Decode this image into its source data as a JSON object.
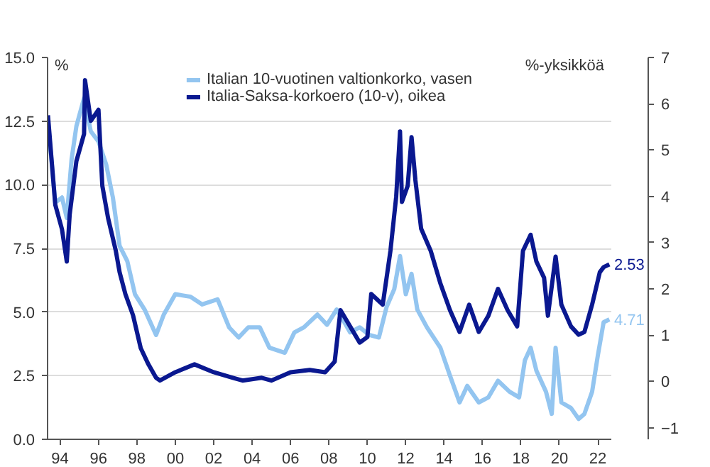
{
  "chart_data": {
    "type": "line",
    "ylabel": "%",
    "y2label": "%-yksikköä",
    "xlim": [
      1993.35,
      2022.7
    ],
    "xticks": [
      {
        "value": 1994,
        "label": "94"
      },
      {
        "value": 1996,
        "label": "96"
      },
      {
        "value": 1998,
        "label": "98"
      },
      {
        "value": 2000,
        "label": "00"
      },
      {
        "value": 2002,
        "label": "02"
      },
      {
        "value": 2004,
        "label": "04"
      },
      {
        "value": 2006,
        "label": "06"
      },
      {
        "value": 2008,
        "label": "08"
      },
      {
        "value": 2010,
        "label": "10"
      },
      {
        "value": 2012,
        "label": "12"
      },
      {
        "value": 2014,
        "label": "14"
      },
      {
        "value": 2016,
        "label": "16"
      },
      {
        "value": 2018,
        "label": "18"
      },
      {
        "value": 2020,
        "label": "20"
      },
      {
        "value": 2022,
        "label": "22"
      }
    ],
    "ylim": [
      0,
      15
    ],
    "yticks": [
      {
        "value": 0,
        "label": "0.0"
      },
      {
        "value": 2.5,
        "label": "2.5"
      },
      {
        "value": 5,
        "label": "5.0"
      },
      {
        "value": 7.5,
        "label": "7.5"
      },
      {
        "value": 10,
        "label": "10.0"
      },
      {
        "value": 12.5,
        "label": "12.5"
      },
      {
        "value": 15,
        "label": "15.0"
      }
    ],
    "y2lim": [
      -1.25,
      7
    ],
    "y2ticks": [
      -1,
      0,
      1,
      2,
      3,
      4,
      5,
      6,
      7
    ],
    "grid": "y",
    "legend": "top",
    "line_style": "solid",
    "marker": "none",
    "series": [
      {
        "name": "Italian 10-vuotinen valtionkorko, vasen",
        "color": "#93c5f0",
        "axis": "y",
        "x": [
          1993.37,
          1993.75,
          1994.1,
          1994.35,
          1994.6,
          1994.85,
          1995.25,
          1995.6,
          1996.0,
          1996.4,
          1996.75,
          1997.1,
          1997.5,
          1997.9,
          1998.4,
          1999.0,
          1999.4,
          2000.0,
          2000.8,
          2001.4,
          2002.2,
          2002.8,
          2003.3,
          2003.8,
          2004.4,
          2004.9,
          2005.7,
          2006.2,
          2006.7,
          2007.4,
          2007.9,
          2008.4,
          2008.8,
          2009.1,
          2009.6,
          2010.1,
          2010.6,
          2011.0,
          2011.4,
          2011.7,
          2012.0,
          2012.3,
          2012.6,
          2013.1,
          2013.8,
          2014.3,
          2014.8,
          2015.2,
          2015.8,
          2016.3,
          2016.8,
          2017.4,
          2017.9,
          2018.2,
          2018.5,
          2018.8,
          2019.3,
          2019.6,
          2019.8,
          2020.1,
          2020.6,
          2021.0,
          2021.3,
          2021.7,
          2022.0,
          2022.3,
          2022.6
        ],
        "values": [
          12.5,
          9.3,
          9.5,
          8.7,
          11.0,
          12.3,
          13.4,
          12.1,
          11.7,
          10.8,
          9.5,
          7.6,
          7.0,
          5.7,
          5.1,
          4.1,
          4.9,
          5.7,
          5.6,
          5.3,
          5.5,
          4.4,
          4.0,
          4.4,
          4.4,
          3.6,
          3.4,
          4.2,
          4.4,
          4.9,
          4.5,
          5.1,
          4.6,
          4.2,
          4.4,
          4.1,
          4.0,
          5.2,
          5.9,
          7.2,
          5.7,
          6.5,
          5.1,
          4.4,
          3.6,
          2.5,
          1.45,
          2.1,
          1.45,
          1.65,
          2.3,
          1.87,
          1.65,
          3.1,
          3.6,
          2.7,
          1.87,
          1.0,
          3.6,
          1.45,
          1.23,
          0.8,
          1.0,
          1.87,
          3.3,
          4.6,
          4.71
        ],
        "value_labels": [
          null,
          null,
          null,
          null,
          null,
          null,
          null,
          null,
          null,
          null,
          null,
          null,
          null,
          null,
          null,
          null,
          null,
          null,
          null,
          null,
          null,
          null,
          null,
          null,
          null,
          null,
          null,
          null,
          null,
          null,
          null,
          null,
          null,
          null,
          null,
          null,
          null,
          null,
          null,
          null,
          null,
          null,
          null,
          null,
          null,
          null,
          null,
          null,
          null,
          null,
          null,
          null,
          null,
          null,
          null,
          null,
          null,
          null,
          null,
          null,
          null,
          null,
          null,
          null,
          null,
          null,
          "4.71"
        ]
      },
      {
        "name": "Italia-Saksa-korkoero (10-v), oikea",
        "color": "#0a1890",
        "axis": "y2",
        "x": [
          1993.37,
          1993.75,
          1994.1,
          1994.35,
          1994.5,
          1994.85,
          1995.25,
          1995.3,
          1995.6,
          1996.0,
          1996.2,
          1996.5,
          1996.9,
          1997.1,
          1997.4,
          1997.8,
          1998.2,
          1998.6,
          1999.0,
          1999.2,
          2000.0,
          2001.0,
          2002.0,
          2003.0,
          2003.5,
          2004.5,
          2005.0,
          2006.0,
          2007.0,
          2007.8,
          2008.3,
          2008.6,
          2009.1,
          2009.6,
          2010.0,
          2010.2,
          2010.8,
          2011.2,
          2011.5,
          2011.7,
          2011.8,
          2012.1,
          2012.3,
          2012.5,
          2012.8,
          2013.3,
          2013.8,
          2014.3,
          2014.8,
          2015.3,
          2015.8,
          2016.3,
          2016.8,
          2017.3,
          2017.8,
          2018.1,
          2018.5,
          2018.8,
          2019.2,
          2019.4,
          2019.8,
          2020.1,
          2020.6,
          2021.0,
          2021.3,
          2021.7,
          2022.1,
          2022.3,
          2022.6
        ],
        "values": [
          5.75,
          3.82,
          3.29,
          2.59,
          3.6,
          4.76,
          5.35,
          6.51,
          5.63,
          5.87,
          4.23,
          3.53,
          2.83,
          2.36,
          1.89,
          1.43,
          0.72,
          0.37,
          0.08,
          0.02,
          0.2,
          0.37,
          0.2,
          0.08,
          0.02,
          0.08,
          0.02,
          0.2,
          0.25,
          0.2,
          0.43,
          1.54,
          1.19,
          0.84,
          0.96,
          1.89,
          1.66,
          2.82,
          3.99,
          5.4,
          3.88,
          4.23,
          5.28,
          4.35,
          3.3,
          2.82,
          2.12,
          1.54,
          1.07,
          1.66,
          1.07,
          1.42,
          2.0,
          1.54,
          1.19,
          2.82,
          3.17,
          2.59,
          2.24,
          1.42,
          2.7,
          1.66,
          1.19,
          1.01,
          1.07,
          1.66,
          2.36,
          2.47,
          2.53
        ],
        "value_labels": [
          null,
          null,
          null,
          null,
          null,
          null,
          null,
          null,
          null,
          null,
          null,
          null,
          null,
          null,
          null,
          null,
          null,
          null,
          null,
          null,
          null,
          null,
          null,
          null,
          null,
          null,
          null,
          null,
          null,
          null,
          null,
          null,
          null,
          null,
          null,
          null,
          null,
          null,
          null,
          null,
          null,
          null,
          null,
          null,
          null,
          null,
          null,
          null,
          null,
          null,
          null,
          null,
          null,
          null,
          null,
          null,
          null,
          null,
          null,
          null,
          null,
          null,
          null,
          null,
          null,
          null,
          null,
          null,
          "2.53"
        ]
      }
    ]
  }
}
